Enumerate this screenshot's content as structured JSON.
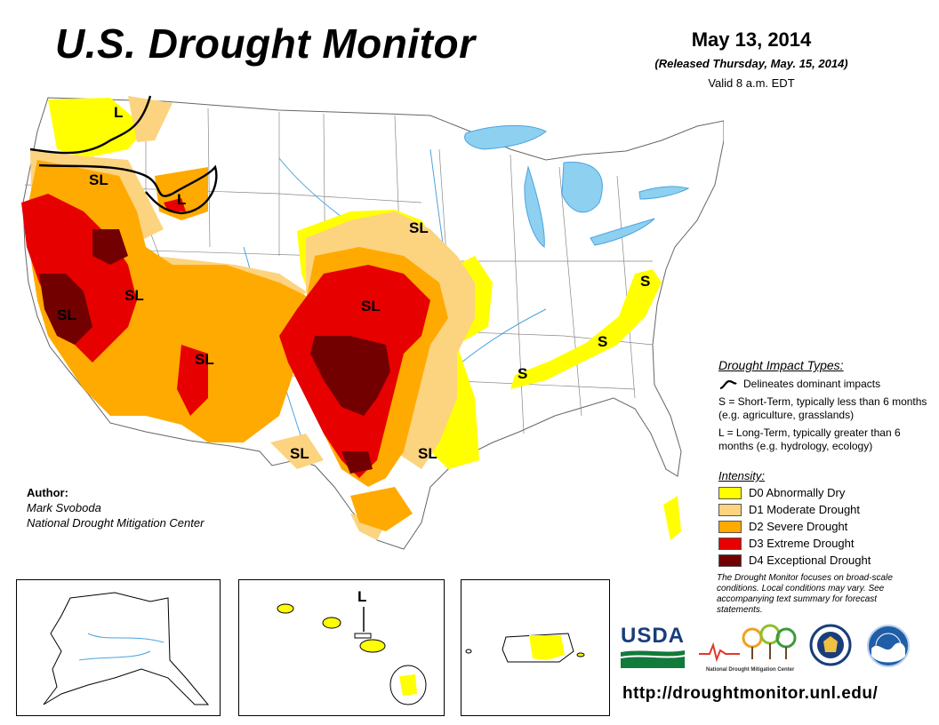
{
  "header": {
    "title": "U.S. Drought Monitor",
    "date": "May 13, 2014",
    "released": "(Released Thursday, May. 15, 2014)",
    "valid": "Valid 8 a.m. EDT"
  },
  "map_labels": {
    "pacific_northwest_l": "L",
    "oregon_sl": "SL",
    "idaho_l": "L",
    "nebraska_sl": "SL",
    "nevada_sl": "SL",
    "california_sl": "SL",
    "kansas_sl": "SL",
    "new_mexico_sl": "SL",
    "west_texas_sl": "SL",
    "east_texas_sl": "SL",
    "virginia_s": "S",
    "tennessee_s": "S",
    "arkansas_s": "S",
    "hawaii_l": "L"
  },
  "author": {
    "heading": "Author:",
    "name": "Mark Svoboda",
    "org": "National Drought Mitigation Center"
  },
  "impact_types": {
    "heading": "Drought Impact Types:",
    "delineates": "Delineates dominant impacts",
    "short_term": "S = Short-Term, typically less than 6 months (e.g. agriculture, grasslands)",
    "long_term": "L = Long-Term, typically greater than 6 months (e.g. hydrology, ecology)"
  },
  "intensity": {
    "heading": "Intensity:",
    "levels": [
      {
        "label": "D0 Abnormally Dry",
        "color": "#ffff00"
      },
      {
        "label": "D1 Moderate Drought",
        "color": "#fcd37f"
      },
      {
        "label": "D2 Severe Drought",
        "color": "#ffaa00"
      },
      {
        "label": "D3 Extreme Drought",
        "color": "#e60000"
      },
      {
        "label": "D4 Exceptional Drought",
        "color": "#730000"
      }
    ]
  },
  "footnote": "The Drought Monitor focuses on broad-scale conditions. Local conditions may vary. See accompanying text summary for forecast statements.",
  "logos": {
    "usda": "USDA",
    "ndmc_line1": "National",
    "ndmc_line2": "Drought Mitigation Center"
  },
  "url": "http://droughtmonitor.unl.edu/",
  "colors": {
    "water": "#8ed0f0",
    "river": "#4aa3e0",
    "d0": "#ffff00",
    "d1": "#fcd37f",
    "d2": "#ffaa00",
    "d3": "#e60000",
    "d4": "#730000"
  }
}
